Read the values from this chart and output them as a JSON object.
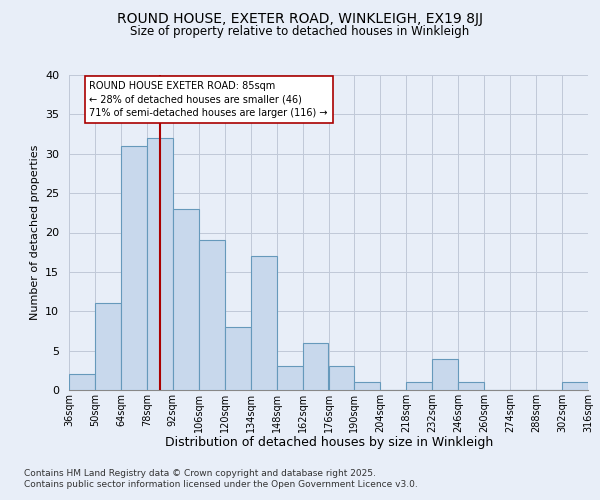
{
  "title_line1": "ROUND HOUSE, EXETER ROAD, WINKLEIGH, EX19 8JJ",
  "title_line2": "Size of property relative to detached houses in Winkleigh",
  "xlabel": "Distribution of detached houses by size in Winkleigh",
  "ylabel": "Number of detached properties",
  "annotation_lines": [
    "ROUND HOUSE EXETER ROAD: 85sqm",
    "← 28% of detached houses are smaller (46)",
    "71% of semi-detached houses are larger (116) →"
  ],
  "footer_lines": [
    "Contains HM Land Registry data © Crown copyright and database right 2025.",
    "Contains public sector information licensed under the Open Government Licence v3.0."
  ],
  "bar_edges": [
    36,
    50,
    64,
    78,
    92,
    106,
    120,
    134,
    148,
    162,
    176,
    190,
    204,
    218,
    232,
    246,
    260,
    274,
    288,
    302,
    316
  ],
  "bar_heights": [
    2,
    11,
    31,
    32,
    23,
    19,
    8,
    17,
    3,
    6,
    3,
    1,
    0,
    1,
    4,
    1,
    0,
    0,
    0,
    1
  ],
  "bar_color": "#c8d8ec",
  "bar_edge_color": "#6699bb",
  "vline_x": 85,
  "vline_color": "#aa0000",
  "annotation_box_color": "#aa0000",
  "bg_color": "#e8eef8",
  "grid_color": "#c0c8d8",
  "ylim": [
    0,
    40
  ],
  "yticks": [
    0,
    5,
    10,
    15,
    20,
    25,
    30,
    35,
    40
  ]
}
